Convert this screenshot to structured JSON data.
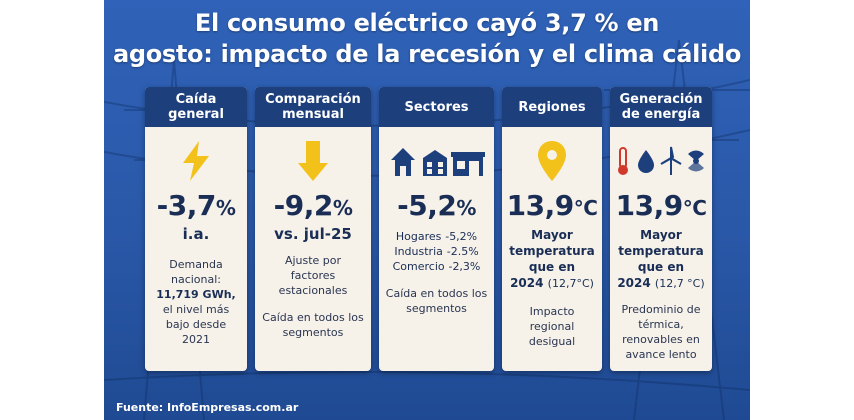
{
  "title": {
    "line1": "El consumo eléctrico cayó 3,7 % en",
    "line2": "agosto: impacto de la recesión y el clima cálido"
  },
  "cards": [
    {
      "header": "Caída general",
      "icon": "lightning-icon",
      "value": "-3,7",
      "unit": "%",
      "sub": "i.a.",
      "text_1": "Demanda nacional:",
      "text_2": "11,719 GWh,",
      "text_3": "el nivel más bajo desde 2021"
    },
    {
      "header": "Comparación mensual",
      "icon": "down-arrow-icon",
      "value": "-9,2",
      "unit": "%",
      "sub": "vs. jul-25",
      "text_1": "Ajuste por factores estacionales",
      "text_2": "Caída en todos los segmentos"
    },
    {
      "header": "Sectores",
      "icon": "buildings-icon",
      "value": "-5,2",
      "unit": "%",
      "sectors": [
        {
          "name": "Hogares",
          "value": "-5,2%"
        },
        {
          "name": "Industria",
          "value": "-2.5%"
        },
        {
          "name": "Comercio",
          "value": "-2,3%"
        }
      ],
      "text_1": "Caída en todos los segmentos"
    },
    {
      "header": "Regiones",
      "icon": "location-pin-icon",
      "value": "13,9",
      "unit": "°C",
      "temp_line1": "Mayor temperatura que en",
      "temp_year": "2024",
      "temp_prev": "(12,7°C)",
      "text_1": "Impacto regional desigual"
    },
    {
      "header": "Generación de energía",
      "icon": "energy-sources-icon",
      "value": "13,9",
      "unit": "°C",
      "temp_line1": "Mayor temperatura que en",
      "temp_year": "2024",
      "temp_prev": "(12,7 °C)",
      "text_1": "Predominio de térmica, renovables en avance lento"
    }
  ],
  "source": "Fuente: InfoEmpresas.com.ar",
  "colors": {
    "background": "#2f62b8",
    "card_header": "#1d3f7c",
    "card_body": "#f6f2ea",
    "accent_yellow": "#f2c21b",
    "text_dark": "#1a2e55"
  }
}
